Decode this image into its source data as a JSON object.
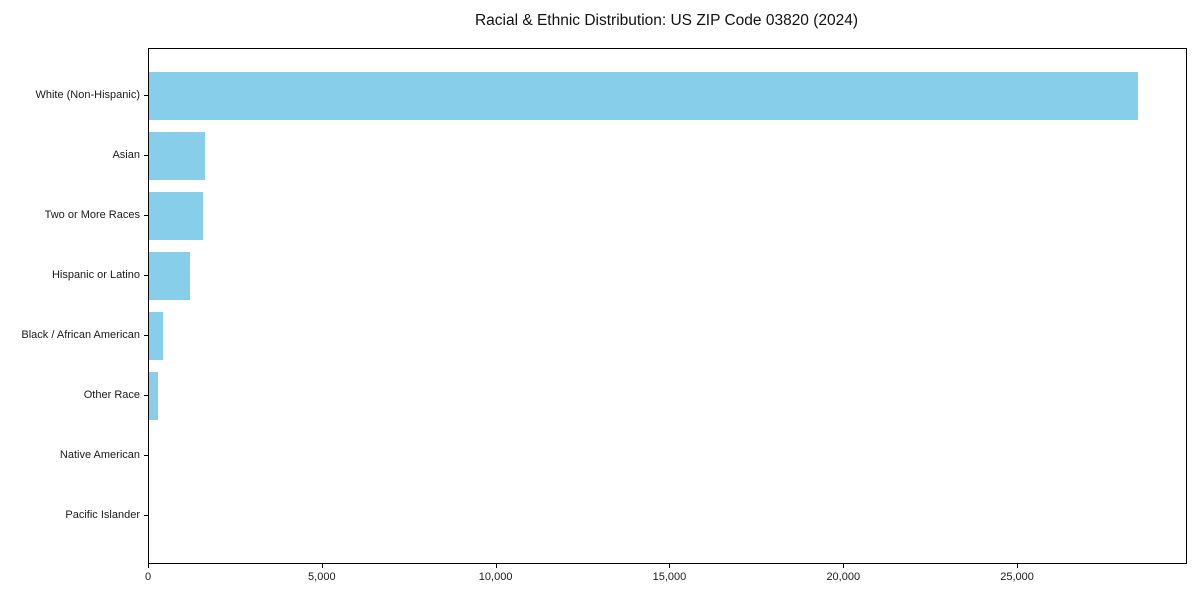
{
  "chart_data": {
    "type": "bar",
    "orientation": "horizontal",
    "title": "Racial & Ethnic Distribution: US ZIP Code 03820 (2024)",
    "categories": [
      "White (Non-Hispanic)",
      "Asian",
      "Two or More Races",
      "Hispanic or Latino",
      "Black / African American",
      "Other Race",
      "Native American",
      "Pacific Islander"
    ],
    "values": [
      28450,
      1610,
      1540,
      1190,
      410,
      270,
      0,
      0
    ],
    "xlabel": "",
    "ylabel": "",
    "xlim": [
      0,
      29830
    ],
    "x_ticks": [
      0,
      5000,
      10000,
      15000,
      20000,
      25000
    ],
    "x_tick_labels": [
      "0",
      "5,000",
      "10,000",
      "15,000",
      "20,000",
      "25,000"
    ],
    "bar_color": "#87CEEB",
    "background_color": "#ffffff",
    "spine_color": "#000000",
    "grid": false,
    "legend": null,
    "bar_height_fraction": 0.8
  }
}
